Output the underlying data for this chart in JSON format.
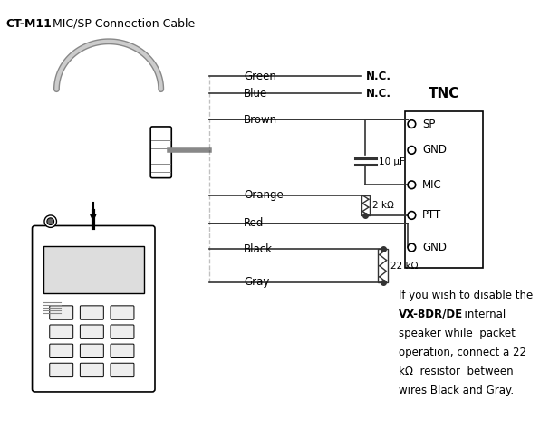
{
  "title_bold": "CT-M11",
  "title_normal": " MIC/SP Connection Cable",
  "background_color": "#ffffff",
  "wire_color": "#333333",
  "tnc_label": "TNC",
  "tnc_pins": [
    "SP",
    "GND",
    "MIC",
    "PTT",
    "GND"
  ],
  "wire_labels": [
    "Green",
    "Blue",
    "Brown",
    "Orange",
    "Red",
    "Black",
    "Gray"
  ],
  "nc_labels": [
    "N.C.",
    "N.C."
  ],
  "cap_label": "10 μF",
  "res1_label": "2 kΩ",
  "res2_label": "22 kΩ",
  "note_lines": [
    "If you wish to disable the",
    "VX-8DR/DE  internal",
    "speaker while  packet",
    "operation, connect a 22",
    "kΩ  resistor  between",
    "wires Black and Gray."
  ],
  "note_bold_word": "VX-8DR/DE"
}
